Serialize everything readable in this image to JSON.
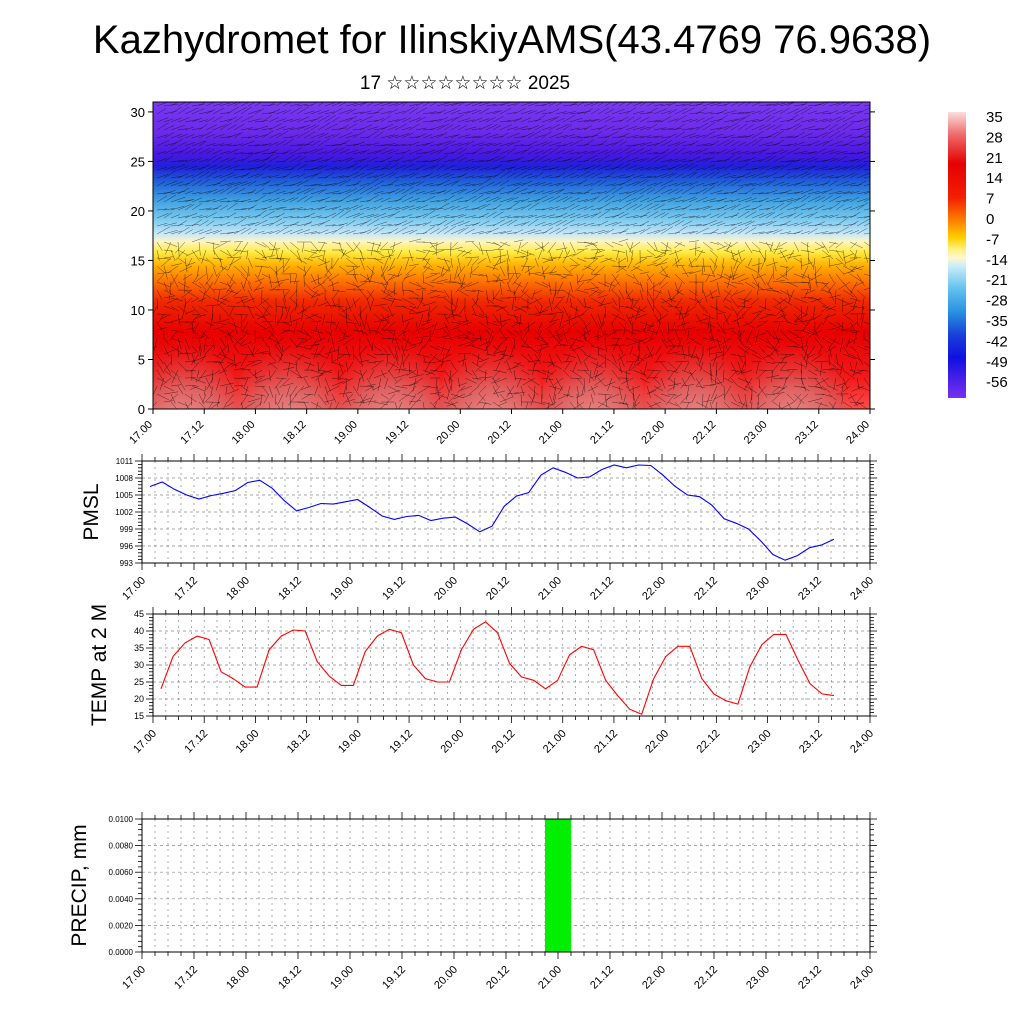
{
  "title": "Kazhydromet for IlinskiyAMS(43.4769 76.9638)",
  "subtitle": "17 ☆☆☆☆☆☆☆☆ 2025",
  "x_tick_labels": [
    "17.00",
    "17.12",
    "18.00",
    "18.12",
    "19.00",
    "19.12",
    "20.00",
    "20.12",
    "21.00",
    "21.12",
    "22.00",
    "22.12",
    "23.00",
    "23.12",
    "24.00"
  ],
  "colorbar": {
    "labels": [
      "35",
      "28",
      "21",
      "14",
      "7",
      "0",
      "-7",
      "-14",
      "-21",
      "-28",
      "-35",
      "-42",
      "-49",
      "-56"
    ]
  },
  "chart_data": [
    {
      "type": "heatmap",
      "description_kind": "temperature cross-section with wind vectors",
      "x_ticks": [
        "17.00",
        "17.12",
        "18.00",
        "18.12",
        "19.00",
        "19.12",
        "20.00",
        "20.12",
        "21.00",
        "21.12",
        "22.00",
        "22.12",
        "23.00",
        "23.12",
        "24.00"
      ],
      "y_ticks": [
        0,
        5,
        10,
        15,
        20,
        25,
        30
      ],
      "ylim": [
        0,
        31
      ],
      "color_range": [
        -56,
        35
      ]
    },
    {
      "type": "line",
      "ylabel": "PMSL",
      "ylim": [
        993,
        1011
      ],
      "y_ticks": [
        993,
        996,
        999,
        1002,
        1005,
        1008,
        1011
      ],
      "x_ticks": [
        "17.00",
        "17.12",
        "18.00",
        "18.12",
        "19.00",
        "19.12",
        "20.00",
        "20.12",
        "21.00",
        "21.12",
        "22.00",
        "22.12",
        "23.00",
        "23.12",
        "24.00"
      ],
      "color": "#0000ff",
      "values": [
        1006.5,
        1007.3,
        1006,
        1005,
        1004.3,
        1004.9,
        1005.3,
        1005.8,
        1007.2,
        1007.6,
        1006.2,
        1004,
        1002.2,
        1002.8,
        1003.5,
        1003.4,
        1003.8,
        1004.2,
        1002.8,
        1001.3,
        1000.7,
        1001.2,
        1001.4,
        1000.5,
        1000.9,
        1001.1,
        999.9,
        998.5,
        999.5,
        1003,
        1004.8,
        1005.4,
        1008.5,
        1009.8,
        1009,
        1008,
        1008.2,
        1009.5,
        1010.3,
        1009.8,
        1010.3,
        1010.2,
        1008.5,
        1006.5,
        1005,
        1004.7,
        1003.2,
        1000.8,
        1000,
        999,
        996.9,
        994.5,
        993.5,
        994.3,
        995.7,
        996.2,
        997.2
      ]
    },
    {
      "type": "line",
      "ylabel": "TEMP at 2 M",
      "ylim": [
        15,
        45
      ],
      "y_ticks": [
        15,
        20,
        25,
        30,
        35,
        40,
        45
      ],
      "x_ticks": [
        "17.00",
        "17.12",
        "18.00",
        "18.12",
        "19.00",
        "19.12",
        "20.00",
        "20.12",
        "21.00",
        "21.12",
        "22.00",
        "22.12",
        "23.00",
        "23.12",
        "24.00"
      ],
      "color": "#ff0000",
      "values": [
        23,
        32.5,
        36.5,
        38.5,
        37.5,
        28,
        26,
        23.5,
        23.5,
        34.5,
        38.5,
        40.3,
        40,
        31,
        26.7,
        24,
        24,
        34,
        38.5,
        40.5,
        39.5,
        30,
        26,
        25,
        25,
        34.5,
        40.5,
        42.7,
        39.5,
        30.5,
        26.5,
        25.5,
        23,
        25.5,
        33,
        35.5,
        34.5,
        25.5,
        21,
        17,
        15.5,
        26,
        32.5,
        35.5,
        35.5,
        26,
        21.5,
        19.5,
        18.5,
        29.5,
        36,
        39,
        39,
        31.5,
        24.5,
        21.5,
        21
      ]
    },
    {
      "type": "bar",
      "ylabel": "PRECIP, mm",
      "ylim": [
        0,
        0.01
      ],
      "y_ticks": [
        "0.0000",
        "0.0020",
        "0.0040",
        "0.0060",
        "0.0080",
        "0.0100"
      ],
      "x_ticks": [
        "17.00",
        "17.12",
        "18.00",
        "18.12",
        "19.00",
        "19.12",
        "20.00",
        "20.12",
        "21.00",
        "21.12",
        "22.00",
        "22.12",
        "23.00",
        "23.12",
        "24.00"
      ],
      "color": "#00ee00",
      "bars": [
        {
          "x_start_hours": 93,
          "x_end_hours": 99,
          "value": 0.01
        }
      ]
    }
  ]
}
